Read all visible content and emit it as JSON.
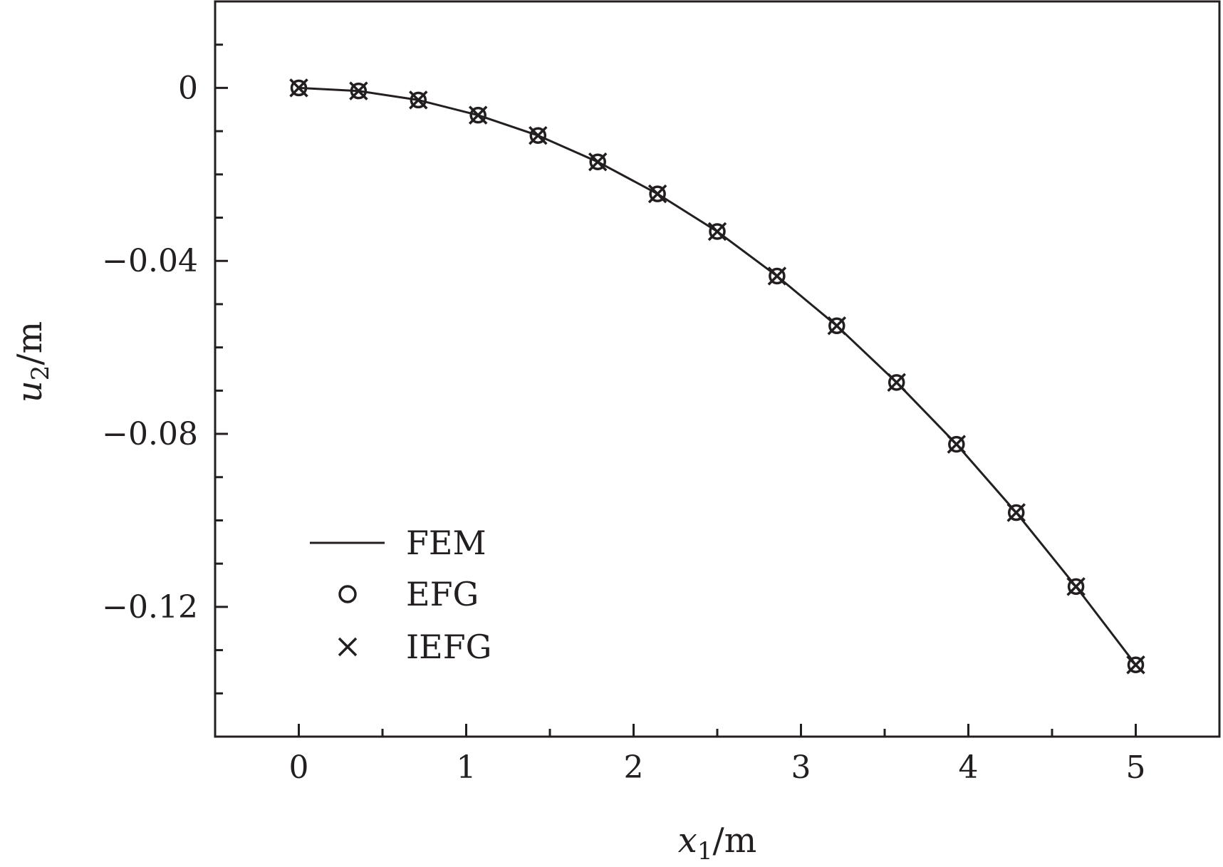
{
  "chart_data": {
    "type": "line",
    "title": "",
    "xlabel": {
      "var": "x",
      "sub": "1",
      "unit": "/m"
    },
    "ylabel": {
      "var": "u",
      "sub": "2",
      "unit": "/m"
    },
    "xlim": [
      -0.5,
      5.5
    ],
    "ylim": [
      -0.15,
      0.02
    ],
    "x_ticks": [
      0,
      1,
      2,
      3,
      4,
      5
    ],
    "x_tick_labels": [
      "0",
      "1",
      "2",
      "3",
      "4",
      "5"
    ],
    "x_minor_step": 0.5,
    "y_ticks": [
      0,
      -0.04,
      -0.08,
      -0.12
    ],
    "y_tick_labels": [
      "0",
      "−0.04",
      "−0.08",
      "−0.12"
    ],
    "y_minor_step": 0.01,
    "grid": false,
    "legend_position": "bottom-left",
    "x": [
      0,
      0.357,
      0.714,
      1.071,
      1.429,
      1.786,
      2.143,
      2.5,
      2.857,
      3.214,
      3.571,
      3.929,
      4.286,
      4.643,
      5.0
    ],
    "series": [
      {
        "name": "FEM",
        "style": "line",
        "color": "#000000",
        "values": [
          0,
          -0.0007,
          -0.0028,
          -0.0063,
          -0.011,
          -0.0171,
          -0.0245,
          -0.0332,
          -0.0435,
          -0.055,
          -0.0681,
          -0.0824,
          -0.0982,
          -0.1153,
          -0.1334
        ]
      },
      {
        "name": "EFG",
        "style": "circle",
        "color": "#000000",
        "values": [
          0,
          -0.0007,
          -0.0028,
          -0.0063,
          -0.011,
          -0.0171,
          -0.0245,
          -0.0332,
          -0.0435,
          -0.055,
          -0.0681,
          -0.0824,
          -0.0982,
          -0.1153,
          -0.1334
        ]
      },
      {
        "name": "IEFG",
        "style": "cross",
        "color": "#000000",
        "values": [
          0,
          -0.0007,
          -0.0028,
          -0.0063,
          -0.011,
          -0.0171,
          -0.0245,
          -0.0332,
          -0.0435,
          -0.055,
          -0.0681,
          -0.0824,
          -0.0982,
          -0.1153,
          -0.1334
        ]
      }
    ]
  }
}
